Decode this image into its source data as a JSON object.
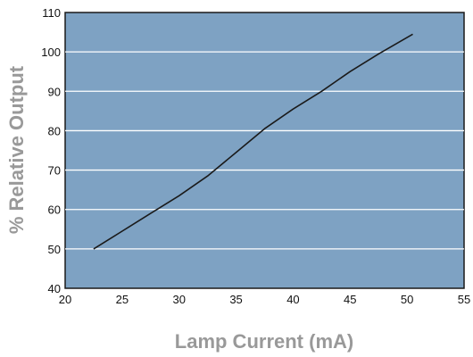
{
  "chart_data": {
    "type": "line",
    "title": "",
    "xlabel": "Lamp Current (mA)",
    "ylabel": "% Relative Output",
    "xlim": [
      20,
      55
    ],
    "ylim": [
      40,
      110
    ],
    "xticks": [
      20,
      25,
      30,
      35,
      40,
      45,
      50,
      55
    ],
    "yticks": [
      40,
      50,
      60,
      70,
      80,
      90,
      100,
      110
    ],
    "grid": "horizontal",
    "legend": "none",
    "series": [
      {
        "points": [
          [
            22.5,
            50
          ],
          [
            25,
            54.5
          ],
          [
            27.5,
            59
          ],
          [
            30,
            63.5
          ],
          [
            32.5,
            68.5
          ],
          [
            35,
            74.5
          ],
          [
            37.5,
            80.5
          ],
          [
            40,
            85.5
          ],
          [
            42.5,
            90
          ],
          [
            45,
            95
          ],
          [
            47.5,
            99.5
          ],
          [
            50.5,
            104.5
          ]
        ]
      }
    ]
  },
  "colors": {
    "plot_background": "#7ea2c3",
    "plot_border": "#1a1a1a",
    "gridline": "#ffffff",
    "line": "#1a1a1a",
    "axis_title": "#999999"
  }
}
